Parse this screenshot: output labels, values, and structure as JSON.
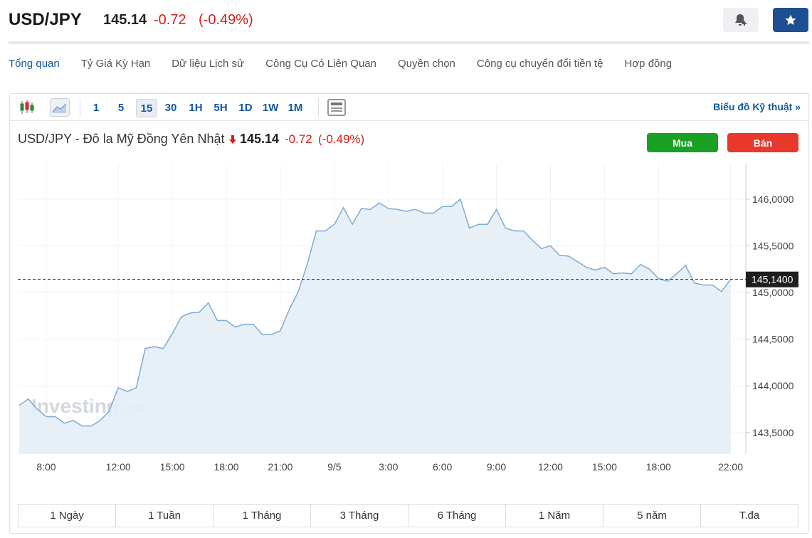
{
  "header": {
    "symbol": "USD/JPY",
    "price": "145.14",
    "change": "-0.72",
    "change_pct": "(-0.49%)"
  },
  "tabs": [
    "Tổng quan",
    "Tỷ Giá Kỳ Hạn",
    "Dữ liệu Lịch sử",
    "Công Cụ Có Liên Quan",
    "Quyền chọn",
    "Công cụ chuyển đổi tiền tệ",
    "Hợp đồng"
  ],
  "toolbar": {
    "intervals": [
      "1",
      "5",
      "15",
      "30",
      "1H",
      "5H",
      "1D",
      "1W",
      "1M"
    ],
    "active_interval": 2,
    "technical_link": "Biểu đồ Kỹ thuật »"
  },
  "quote": {
    "title": "USD/JPY - Đô la Mỹ Đồng Yên Nhật",
    "price": "145.14",
    "change": "-0.72",
    "change_pct": "(-0.49%)",
    "buy": "Mua",
    "sell": "Bán"
  },
  "chart_data": {
    "type": "area",
    "color": "#7eaad3",
    "fill": "#e4edf6",
    "grid": true,
    "watermark": [
      "Investing",
      ".com"
    ],
    "x": [
      6.5,
      7,
      7.5,
      8,
      8.5,
      9,
      9.5,
      10,
      10.5,
      11,
      11.5,
      12,
      12.5,
      13,
      13.5,
      14,
      14.5,
      15,
      15.5,
      16,
      16.5,
      17,
      17.5,
      18,
      18.5,
      19,
      19.5,
      20,
      20.5,
      21,
      21.5,
      22,
      22.5,
      23,
      23.5,
      24,
      24.5,
      25,
      25.5,
      26,
      26.5,
      27,
      27.5,
      28,
      28.5,
      29,
      29.5,
      30,
      30.5,
      31,
      31.5,
      32,
      32.5,
      33,
      33.5,
      34,
      34.5,
      35,
      35.5,
      36,
      36.5,
      37,
      37.5,
      38,
      38.5,
      39,
      39.5,
      40,
      40.5,
      41,
      41.5,
      42,
      42.5,
      43,
      43.5,
      44,
      44.5,
      45,
      45.5,
      46
    ],
    "values": [
      143.79,
      143.86,
      143.75,
      143.67,
      143.67,
      143.6,
      143.63,
      143.57,
      143.57,
      143.63,
      143.73,
      143.98,
      143.94,
      143.98,
      144.4,
      144.42,
      144.4,
      144.56,
      144.74,
      144.78,
      144.79,
      144.89,
      144.7,
      144.7,
      144.63,
      144.66,
      144.66,
      144.55,
      144.55,
      144.59,
      144.82,
      145.01,
      145.31,
      145.66,
      145.66,
      145.73,
      145.91,
      145.73,
      145.9,
      145.89,
      145.96,
      145.9,
      145.89,
      145.87,
      145.89,
      145.85,
      145.85,
      145.92,
      145.92,
      146.0,
      145.69,
      145.73,
      145.73,
      145.89,
      145.69,
      145.66,
      145.66,
      145.56,
      145.47,
      145.5,
      145.4,
      145.39,
      145.33,
      145.27,
      145.24,
      145.27,
      145.2,
      145.21,
      145.2,
      145.3,
      145.25,
      145.15,
      145.12,
      145.2,
      145.29,
      145.1,
      145.08,
      145.08,
      145.01,
      145.14
    ],
    "xlim": [
      6.42,
      46.85
    ],
    "ylim": [
      143.27,
      146.38
    ],
    "xticks": [
      {
        "value": 8,
        "label": "8:00"
      },
      {
        "value": 12,
        "label": "12:00"
      },
      {
        "value": 15,
        "label": "15:00"
      },
      {
        "value": 18,
        "label": "18:00"
      },
      {
        "value": 21,
        "label": "21:00"
      },
      {
        "value": 24,
        "label": "9/5"
      },
      {
        "value": 27,
        "label": "3:00"
      },
      {
        "value": 30,
        "label": "6:00"
      },
      {
        "value": 33,
        "label": "9:00"
      },
      {
        "value": 36,
        "label": "12:00"
      },
      {
        "value": 39,
        "label": "15:00"
      },
      {
        "value": 42,
        "label": "18:00"
      },
      {
        "value": 46,
        "label": "22:00"
      }
    ],
    "yticks": [
      {
        "value": 143.5,
        "label": "143,5000"
      },
      {
        "value": 144,
        "label": "144,0000"
      },
      {
        "value": 144.5,
        "label": "144,5000"
      },
      {
        "value": 145,
        "label": "145,0000"
      },
      {
        "value": 145.5,
        "label": "145,5000"
      },
      {
        "value": 146,
        "label": "146,0000"
      }
    ],
    "price_line": {
      "value": 145.14,
      "label": "145,1400"
    }
  },
  "ranges": [
    "1 Ngày",
    "1 Tuần",
    "1 Tháng",
    "3 Tháng",
    "6 Tháng",
    "1 Năm",
    "5 năm",
    "T.đa"
  ]
}
